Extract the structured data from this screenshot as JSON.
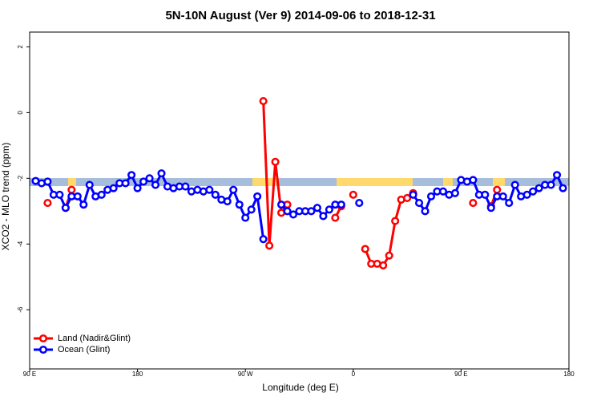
{
  "chart_data": {
    "type": "line",
    "title": "5N-10N August (Ver 9)   2014-09-06 to 2018-12-31",
    "x_label": "Longitude (deg E)",
    "y_label": "XCO2 - MLO trend (ppm)",
    "x": [
      95,
      100,
      105,
      110,
      115,
      120,
      125,
      130,
      135,
      140,
      145,
      150,
      155,
      160,
      165,
      170,
      175,
      180,
      185,
      190,
      195,
      200,
      205,
      210,
      215,
      220,
      225,
      230,
      235,
      240,
      245,
      250,
      255,
      260,
      265,
      270,
      275,
      280,
      285,
      290,
      295,
      300,
      305,
      310,
      315,
      320,
      325,
      330,
      335,
      340,
      345,
      350,
      355,
      360,
      365,
      370,
      375,
      380,
      385,
      390,
      395,
      400,
      405,
      410,
      415,
      420,
      425,
      430,
      435,
      440,
      445,
      450,
      455,
      460,
      465,
      470,
      475,
      480,
      485,
      490,
      495,
      500,
      505,
      510,
      515,
      520,
      525,
      530,
      535
    ],
    "series": [
      {
        "name": "Land (Nadir&Glint)",
        "color": "#ff0000",
        "values": [
          null,
          null,
          -2.75,
          null,
          null,
          -2.9,
          -2.35,
          null,
          null,
          null,
          null,
          null,
          null,
          null,
          null,
          null,
          null,
          null,
          null,
          null,
          null,
          null,
          null,
          null,
          null,
          null,
          null,
          null,
          null,
          null,
          null,
          null,
          null,
          null,
          null,
          null,
          null,
          null,
          0.35,
          -4.05,
          -1.5,
          -3.05,
          -2.8,
          null,
          null,
          null,
          null,
          null,
          null,
          null,
          -3.2,
          -2.85,
          null,
          -2.5,
          null,
          -4.15,
          -4.6,
          -4.6,
          -4.65,
          -4.35,
          -3.3,
          -2.65,
          -2.6,
          -2.45,
          null,
          null,
          null,
          null,
          null,
          null,
          null,
          null,
          null,
          -2.75,
          null,
          null,
          -2.85,
          -2.35,
          null,
          null,
          null,
          null,
          null,
          null,
          null,
          null,
          null,
          null,
          null
        ]
      },
      {
        "name": "Ocean (Glint)",
        "color": "#0000ff",
        "values": [
          -2.08,
          -2.15,
          -2.1,
          -2.5,
          -2.5,
          -2.9,
          -2.55,
          -2.55,
          -2.8,
          -2.2,
          -2.55,
          -2.5,
          -2.35,
          -2.3,
          -2.15,
          -2.15,
          -1.9,
          -2.3,
          -2.1,
          -2.0,
          -2.2,
          -1.85,
          -2.25,
          -2.3,
          -2.25,
          -2.25,
          -2.4,
          -2.35,
          -2.4,
          -2.35,
          -2.5,
          -2.65,
          -2.7,
          -2.35,
          -2.8,
          -3.2,
          -2.95,
          -2.55,
          -3.85,
          null,
          null,
          -2.8,
          -3.0,
          -3.1,
          -3.0,
          -3.0,
          -3.0,
          -2.9,
          -3.15,
          -2.95,
          -2.8,
          -2.8,
          null,
          null,
          -2.75,
          null,
          null,
          null,
          null,
          null,
          null,
          null,
          null,
          -2.5,
          -2.75,
          -3.0,
          -2.55,
          -2.4,
          -2.4,
          -2.5,
          -2.45,
          -2.05,
          -2.1,
          -2.05,
          -2.5,
          -2.5,
          -2.9,
          -2.55,
          -2.55,
          -2.75,
          -2.2,
          -2.55,
          -2.5,
          -2.4,
          -2.3,
          -2.2,
          -2.2,
          -1.9,
          -2.3
        ]
      }
    ],
    "xlim": [
      90,
      540
    ],
    "xticks": [
      {
        "value": 90,
        "label": "90 E"
      },
      180,
      {
        "value": 270,
        "label": "90 W"
      },
      {
        "value": 360,
        "label": "0"
      },
      {
        "value": 450,
        "label": "90 E"
      },
      {
        "value": 540,
        "label": "180"
      }
    ],
    "ylim": [
      -7.8,
      2.45
    ],
    "yticks": [
      -6,
      -4,
      -2,
      0,
      2
    ],
    "legend": "bottomleft"
  }
}
